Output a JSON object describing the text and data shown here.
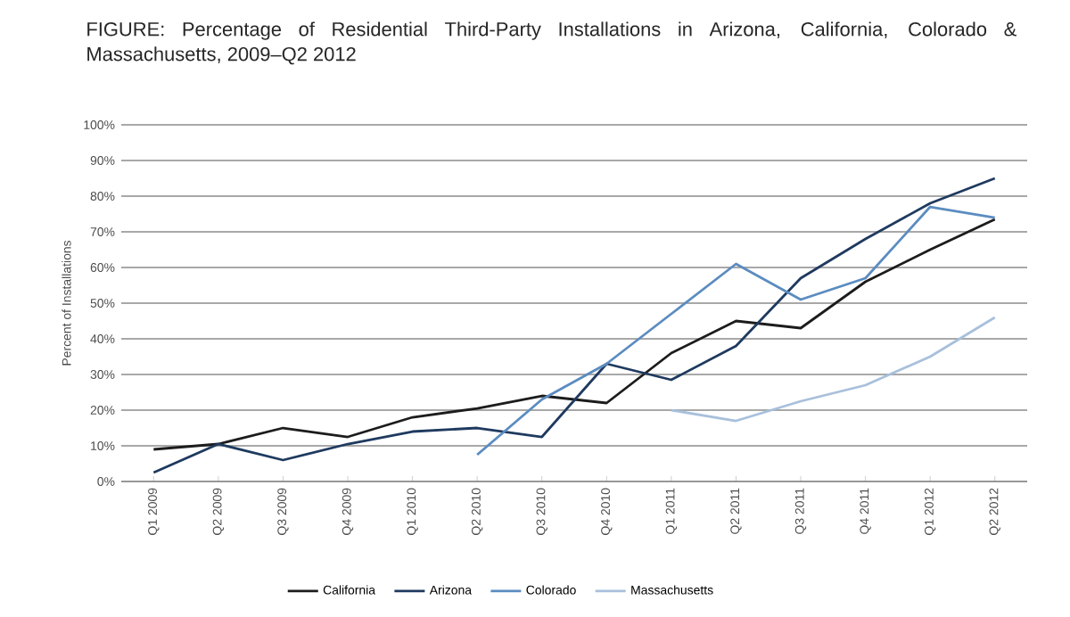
{
  "chart_data": {
    "type": "line",
    "title": "FIGURE: Percentage of Residential Third-Party Installations in Arizona, California, Colorado & Massachusetts, 2009–Q2 2012",
    "ylabel": "Percent of Installations",
    "categories": [
      "Q1 2009",
      "Q2 2009",
      "Q3 2009",
      "Q4 2009",
      "Q1 2010",
      "Q2 2010",
      "Q3 2010",
      "Q4 2010",
      "Q1 2011",
      "Q2 2011",
      "Q3 2011",
      "Q4 2011",
      "Q1 2012",
      "Q2 2012"
    ],
    "series": [
      {
        "name": "California",
        "color": "#1c1c1c",
        "values": [
          9,
          10.5,
          15,
          12.5,
          18,
          20.5,
          24,
          22,
          36,
          45,
          43,
          56,
          65,
          73.5
        ]
      },
      {
        "name": "Arizona",
        "color": "#1f3a5f",
        "values": [
          2.5,
          10.5,
          6,
          10.5,
          14,
          15,
          12.5,
          33,
          28.5,
          38,
          57,
          68,
          78,
          85
        ]
      },
      {
        "name": "Colorado",
        "color": "#5b8cc0",
        "values": [
          null,
          null,
          null,
          null,
          null,
          7.5,
          23,
          33,
          47,
          61,
          51,
          57,
          77,
          74
        ]
      },
      {
        "name": "Massachusetts",
        "color": "#a8c0dc",
        "values": [
          null,
          null,
          null,
          null,
          null,
          null,
          null,
          null,
          20,
          17,
          22.5,
          27,
          35,
          46
        ]
      }
    ],
    "ylim": [
      0,
      100
    ],
    "yticks": [
      {
        "value": 0,
        "label": "0%"
      },
      {
        "value": 10,
        "label": "10%"
      },
      {
        "value": 20,
        "label": "20%"
      },
      {
        "value": 30,
        "label": "30%"
      },
      {
        "value": 40,
        "label": "40%"
      },
      {
        "value": 50,
        "label": "50%"
      },
      {
        "value": 60,
        "label": "60%"
      },
      {
        "value": 70,
        "label": "70%"
      },
      {
        "value": 80,
        "label": "80%"
      },
      {
        "value": 90,
        "label": "90%"
      },
      {
        "value": 100,
        "label": "100%"
      }
    ],
    "grid": "y",
    "legend": "bottom",
    "marker": "none",
    "line_style": "solid"
  }
}
